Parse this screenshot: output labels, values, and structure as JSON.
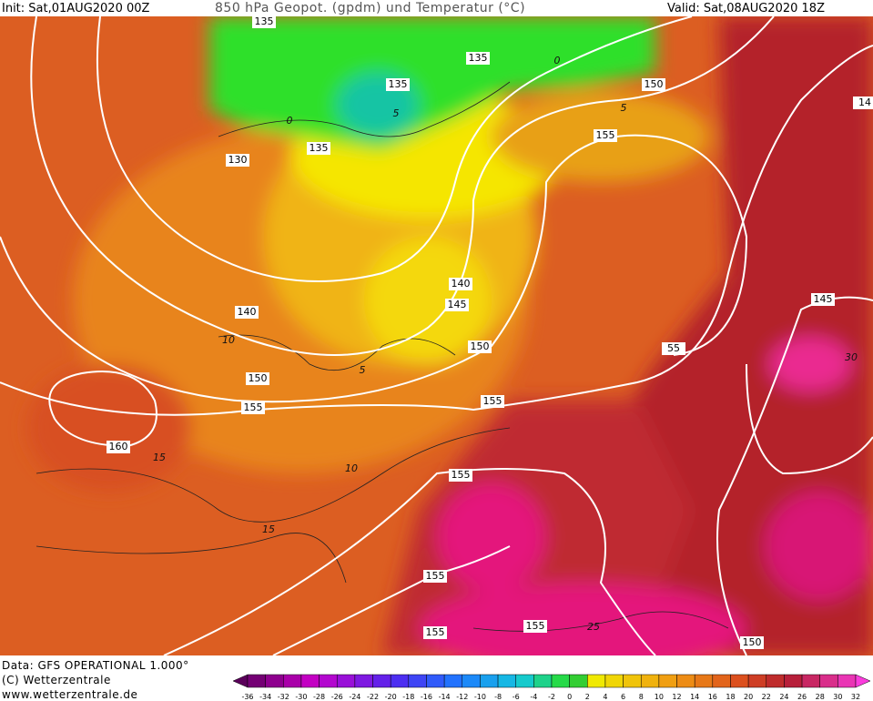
{
  "header": {
    "init": "Init: Sat,01AUG2020 00Z",
    "title": "850 hPa Geopot. (gpdm) und Temperatur (°C)",
    "valid": "Valid: Sat,08AUG2020 18Z"
  },
  "footer": {
    "data": "Data: GFS OPERATIONAL 1.000°",
    "copyright": "(C) Wetterzentrale",
    "url": "www.wetterzentrale.de"
  },
  "geopotential_labels": [
    "135",
    "135",
    "135",
    "135",
    "130",
    "150",
    "155",
    "140",
    "140",
    "145",
    "150",
    "150",
    "155",
    "155",
    "160",
    "155",
    "155",
    "155",
    "155",
    "150",
    "145",
    "14",
    "55"
  ],
  "temperature_labels": [
    "0",
    "0",
    "5",
    "5",
    "10",
    "5",
    "15",
    "10",
    "15",
    "25",
    "30"
  ],
  "colorbar": {
    "labels": [
      -36,
      -34,
      -32,
      -30,
      -28,
      -26,
      -24,
      -22,
      -20,
      -18,
      -16,
      -14,
      -12,
      -10,
      -8,
      -6,
      -4,
      -2,
      0,
      2,
      4,
      6,
      8,
      10,
      12,
      14,
      16,
      18,
      20,
      22,
      24,
      26,
      28,
      30,
      32
    ]
  }
}
